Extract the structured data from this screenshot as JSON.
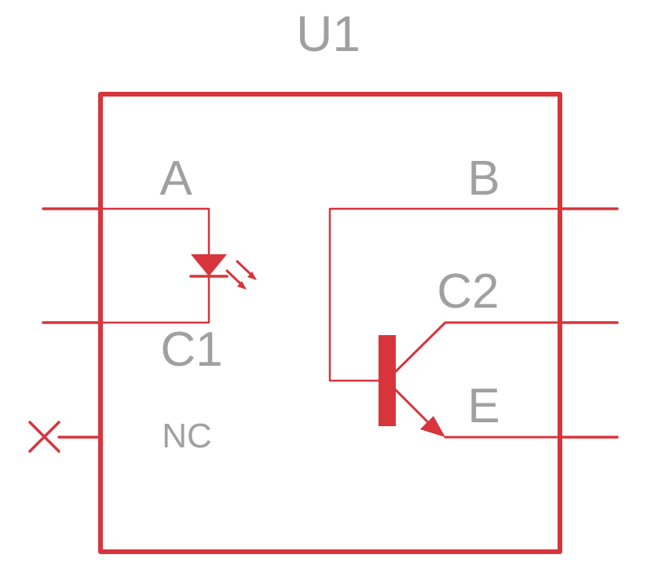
{
  "component": {
    "reference": "U1",
    "pins": {
      "anode": "A",
      "cathode": "C1",
      "no_connect": "NC",
      "base": "B",
      "collector": "C2",
      "emitter": "E"
    }
  },
  "colors": {
    "symbol": "#d8343c",
    "label": "#a0a0a0",
    "background": "#ffffff"
  }
}
